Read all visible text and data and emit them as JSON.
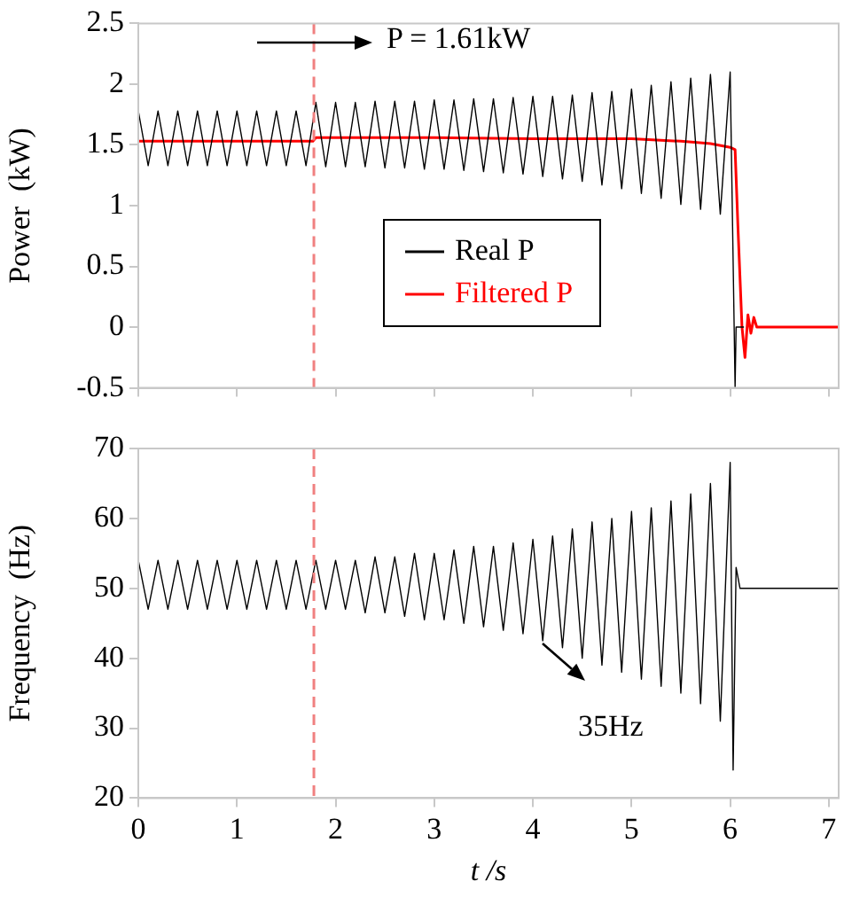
{
  "chart_data": [
    {
      "type": "line",
      "ylabel": "Power  (kW)",
      "xlim": [
        0,
        7.1
      ],
      "xticks": [
        0,
        1,
        2,
        3,
        4,
        5,
        6,
        7
      ],
      "ylim": [
        -0.5,
        2.5
      ],
      "yticks": [
        -0.5,
        0,
        0.5,
        1,
        1.5,
        2,
        2.5
      ],
      "tick_labels": "y",
      "grid": false,
      "legend": "center",
      "annotations": [
        "P = 1.61kW"
      ],
      "ref_lines": [
        {
          "axis": "x",
          "value": 1.78,
          "color": "#f08080",
          "line_style": "dashed"
        }
      ],
      "series": [
        {
          "name": "Real P",
          "color": "#000000",
          "x": [
            0,
            0.1,
            0.2,
            0.3,
            0.4,
            0.5,
            0.6,
            0.7,
            0.8,
            0.9,
            1,
            1.1,
            1.2,
            1.3,
            1.4,
            1.5,
            1.6,
            1.7,
            1.8,
            1.9,
            2,
            2.1,
            2.2,
            2.3,
            2.4,
            2.5,
            2.6,
            2.7,
            2.8,
            2.9,
            3,
            3.1,
            3.2,
            3.3,
            3.4,
            3.5,
            3.6,
            3.7,
            3.8,
            3.9,
            4,
            4.1,
            4.2,
            4.3,
            4.4,
            4.5,
            4.6,
            4.7,
            4.8,
            4.9,
            5,
            5.1,
            5.2,
            5.3,
            5.4,
            5.5,
            5.6,
            5.7,
            5.8,
            5.9,
            6,
            6.05,
            6.06,
            6.14
          ],
          "values": [
            1.78,
            1.33,
            1.78,
            1.33,
            1.78,
            1.33,
            1.78,
            1.33,
            1.78,
            1.33,
            1.78,
            1.33,
            1.78,
            1.33,
            1.78,
            1.33,
            1.78,
            1.33,
            1.85,
            1.32,
            1.85,
            1.32,
            1.85,
            1.32,
            1.86,
            1.31,
            1.86,
            1.31,
            1.86,
            1.3,
            1.87,
            1.3,
            1.87,
            1.29,
            1.88,
            1.28,
            1.88,
            1.27,
            1.89,
            1.26,
            1.9,
            1.24,
            1.9,
            1.22,
            1.91,
            1.2,
            1.93,
            1.17,
            1.94,
            1.14,
            1.96,
            1.1,
            1.99,
            1.06,
            2.02,
            1.01,
            2.05,
            0.97,
            2.08,
            0.93,
            2.1,
            -0.5,
            0,
            0
          ]
        },
        {
          "name": "Filtered P",
          "color": "#ff0000",
          "x": [
            0,
            1.77,
            1.8,
            3,
            4,
            5,
            5.5,
            5.8,
            6,
            6.05,
            6.08,
            6.12,
            6.15,
            6.18,
            6.21,
            6.24,
            6.27,
            6.3,
            7.1
          ],
          "values": [
            1.53,
            1.53,
            1.56,
            1.56,
            1.55,
            1.55,
            1.53,
            1.51,
            1.48,
            1.46,
            0.8,
            0,
            -0.25,
            0.1,
            -0.05,
            0.08,
            0,
            0,
            0
          ]
        }
      ]
    },
    {
      "type": "line",
      "xlabel": "t /s",
      "ylabel": "Frequency  (Hz)",
      "xlim": [
        0,
        7.1
      ],
      "xticks": [
        0,
        1,
        2,
        3,
        4,
        5,
        6,
        7
      ],
      "ylim": [
        20,
        70
      ],
      "yticks": [
        20,
        30,
        40,
        50,
        60,
        70
      ],
      "grid": false,
      "annotations": [
        "35Hz"
      ],
      "ref_lines": [
        {
          "axis": "x",
          "value": 1.78,
          "color": "#f08080",
          "line_style": "dashed"
        }
      ],
      "series": [
        {
          "color": "#000000",
          "x": [
            0,
            0.1,
            0.2,
            0.3,
            0.4,
            0.5,
            0.6,
            0.7,
            0.8,
            0.9,
            1,
            1.1,
            1.2,
            1.3,
            1.4,
            1.5,
            1.6,
            1.7,
            1.8,
            1.9,
            2,
            2.1,
            2.2,
            2.3,
            2.4,
            2.5,
            2.6,
            2.7,
            2.8,
            2.9,
            3,
            3.1,
            3.2,
            3.3,
            3.4,
            3.5,
            3.6,
            3.7,
            3.8,
            3.9,
            4,
            4.1,
            4.2,
            4.3,
            4.4,
            4.5,
            4.6,
            4.7,
            4.8,
            4.9,
            5,
            5.1,
            5.2,
            5.3,
            5.4,
            5.5,
            5.6,
            5.7,
            5.8,
            5.9,
            6,
            6.03,
            6.06,
            6.1,
            7.1
          ],
          "values": [
            54,
            47,
            54,
            47,
            54,
            47,
            54,
            47,
            54,
            47,
            54,
            47,
            54,
            47,
            54,
            47,
            54,
            47,
            54,
            47,
            54,
            47,
            54,
            46.5,
            54.5,
            46.5,
            54.5,
            46,
            55,
            45.5,
            55,
            45.5,
            55.5,
            45,
            56,
            44.5,
            56,
            44,
            56.5,
            43.5,
            57,
            42.5,
            57.5,
            41.5,
            58.5,
            40,
            59.5,
            39,
            60,
            38,
            61,
            37,
            61.5,
            36,
            62.5,
            35,
            63.5,
            33.5,
            65,
            31,
            68,
            24,
            53,
            50,
            50
          ]
        }
      ]
    }
  ]
}
